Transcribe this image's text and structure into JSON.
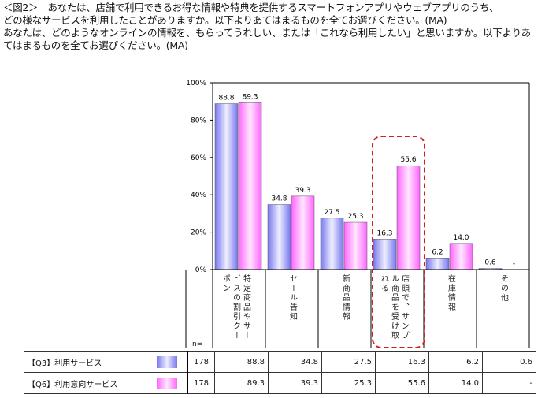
{
  "title_lines": [
    "＜図2＞　あなたは、店舗で利用できるお得な情報や特典を提供するスマートフォンアプリやウェブアプリのうち、",
    "どの様なサービスを利用したことがありますか。以下よりあてはまるものを全てお選びください。(MA)",
    "あなたは、どのようなオンラインの情報を、もらってうれしい、または「これなら利用したい」と思いますか。以下よりあてはまるものを全てお選びください。(MA)"
  ],
  "n_label": "n=",
  "chart_data": {
    "type": "bar",
    "categories": [
      "特定商品やサービスの割引クーポン",
      "セール告知",
      "新商品情報",
      "店頭で、サンプル商品を受け取れる",
      "在庫情報",
      "その他"
    ],
    "series": [
      {
        "name": "【Q3】利用サービス",
        "n": "178",
        "values": [
          88.8,
          34.8,
          27.5,
          16.3,
          6.2,
          0.6
        ],
        "labels": [
          "88.8",
          "34.8",
          "27.5",
          "16.3",
          "6.2",
          "0.6"
        ],
        "color": "#9999ff"
      },
      {
        "name": "【Q6】利用意向サービス",
        "n": "178",
        "values": [
          89.3,
          39.3,
          25.3,
          55.6,
          14.0,
          null
        ],
        "labels": [
          "89.3",
          "39.3",
          "25.3",
          "55.6",
          "14.0",
          "-"
        ],
        "color": "#ff88ff"
      }
    ],
    "yticks": [
      "0%",
      "20%",
      "40%",
      "60%",
      "80%",
      "100%"
    ],
    "ylim": [
      0,
      100
    ],
    "highlighted_category": "店頭で、サンプル商品を受け取れる"
  }
}
